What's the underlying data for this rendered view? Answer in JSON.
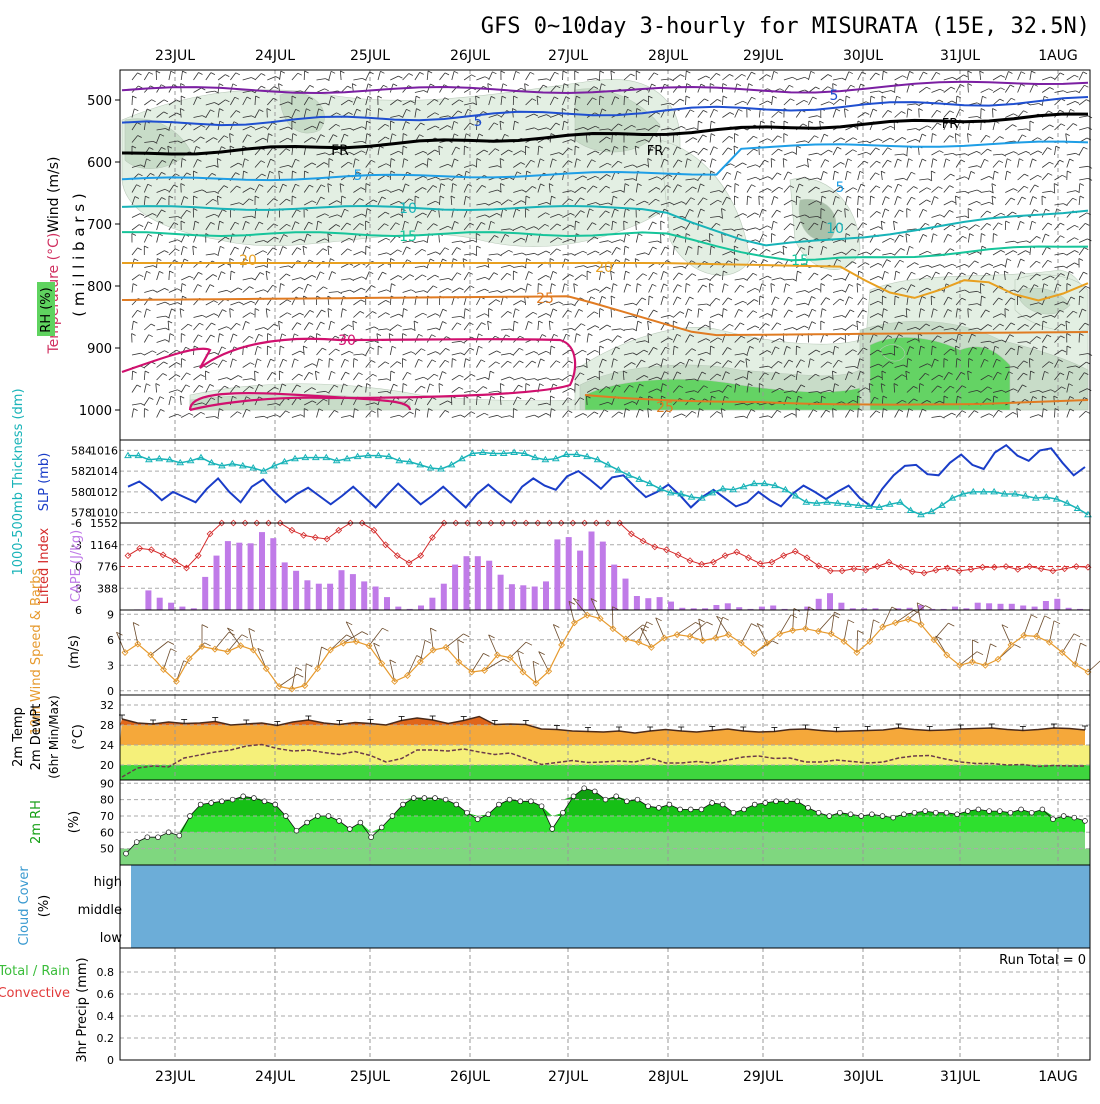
{
  "title": "GFS 0~10day 3-hourly for MISURATA (15E, 32.5N)",
  "dates": [
    "23JUL",
    "24JUL",
    "25JUL",
    "26JUL",
    "27JUL",
    "28JUL",
    "29JUL",
    "30JUL",
    "31JUL",
    "1AUG"
  ],
  "colors": {
    "purple": "#7b1fa2",
    "blue": "#1f4fd0",
    "black": "#000000",
    "lightblue": "#1e9ee6",
    "cyan": "#18b3b8",
    "teal": "#16c49a",
    "gold": "#e8a020",
    "orange": "#e07b22",
    "magenta": "#d0106e",
    "rh_light": "#e2efe2",
    "rh_mid": "#c7dcc7",
    "rh_dark": "#a7bfa7",
    "rh_green": "#5fd35f",
    "slp": "#1a3dc8",
    "thickness": "#18b3b8",
    "cape": "#c07be8",
    "li": "#d42a2a",
    "wind": "#e69a2e",
    "temp_dark": "#e0661a",
    "temp_orange": "#f5a83a",
    "temp_yellow": "#f5f07a",
    "temp_green": "#3ed63e",
    "rh2_dark": "#16c016",
    "rh2_mid": "#2ee02e",
    "rh2_light": "#7fd77f",
    "cloud": "#6cadd8"
  },
  "panels": {
    "upper": {
      "label_wind": "Wind (m/s)",
      "label_temp": "Temperature (°C)",
      "label_rh": "RH (%)",
      "label_mb": "( m i l l i b a r s )",
      "yticks": [
        "500",
        "600",
        "700",
        "800",
        "900",
        "1000"
      ],
      "contours": [
        {
          "label": "5",
          "color": "blue"
        },
        {
          "label": "FR",
          "color": "black"
        },
        {
          "label": "5",
          "color": "lightblue"
        },
        {
          "label": "10",
          "color": "cyan"
        },
        {
          "label": "15",
          "color": "teal"
        },
        {
          "label": "20",
          "color": "gold"
        },
        {
          "label": "25",
          "color": "orange"
        },
        {
          "label": "30",
          "color": "magenta"
        }
      ]
    },
    "slp": {
      "label_thick": "1000-500mb Thickness (dm)",
      "label_slp": "SLP (mb)",
      "left_ticks": [
        "584",
        "582",
        "580",
        "578"
      ],
      "right_ticks": [
        "1016",
        "1014",
        "1012",
        "1010"
      ]
    },
    "cape": {
      "label_li": "Lifted Index",
      "label_cape": "CAPE (J/kg)",
      "left_ticks": [
        "-6",
        "-3",
        "0",
        "3",
        "6"
      ],
      "right_ticks": [
        "1552",
        "1164",
        "776",
        "388"
      ]
    },
    "wind10": {
      "label": "10m Wind Speed & Barbs",
      "unit": "(m/s)",
      "yticks": [
        "9",
        "6",
        "3",
        "0"
      ]
    },
    "temp": {
      "label1": "2m Temp",
      "label2": "2m DewPt",
      "label3": "(6hr Min/Max)",
      "unit": "(°C)",
      "yticks": [
        "32",
        "28",
        "24",
        "20"
      ]
    },
    "rh2": {
      "label": "2m RH",
      "unit": "(%)",
      "yticks": [
        "90",
        "80",
        "70",
        "60",
        "50"
      ]
    },
    "cloud": {
      "label": "Cloud Cover",
      "unit": "(%)",
      "levels": [
        "high",
        "middle",
        "low"
      ]
    },
    "precip": {
      "label": "3hr Precip (mm)",
      "legend_total": "Total / Rain",
      "legend_conv": "Convective",
      "run_total": "Run Total = 0",
      "yticks": [
        "0.8",
        "0.6",
        "0.4",
        "0.2",
        "0"
      ]
    }
  },
  "chart_data": [
    {
      "type": "line",
      "title": "GFS 0~10day 3-hourly for MISURATA (15E, 32.5N)",
      "ylabel": "SLP (mb)",
      "ylim": [
        1009,
        1017
      ],
      "series": [
        {
          "name": "SLP (mb)",
          "values": [
            1012.5,
            1013.0,
            1012.2,
            1011.2,
            1012.0,
            1011.5,
            1011.0,
            1012.3,
            1013.3,
            1012.0,
            1011.0,
            1012.5,
            1013.2,
            1012.0,
            1011.0,
            1011.8,
            1012.4,
            1011.6,
            1010.8,
            1011.6,
            1012.5,
            1011.5,
            1010.5,
            1011.7,
            1012.8,
            1011.8,
            1010.8,
            1011.6,
            1012.5,
            1011.5,
            1010.5,
            1011.8,
            1012.7,
            1011.8,
            1011.0,
            1012.5,
            1013.3,
            1012.6,
            1012.2,
            1013.5,
            1014.0,
            1013.2,
            1012.3,
            1013.4,
            1013.6,
            1012.5,
            1011.5,
            1012.0,
            1012.7,
            1011.7,
            1010.5,
            1011.5,
            1012.2,
            1011.4,
            1010.6,
            1011.0,
            1012.0,
            1011.2,
            1010.6,
            1011.8,
            1012.6,
            1012.0,
            1011.3,
            1012.0,
            1012.6,
            1011.4,
            1010.6,
            1012.3,
            1013.6,
            1014.5,
            1014.6,
            1013.7,
            1013.6,
            1014.8,
            1015.6,
            1014.6,
            1014.2,
            1015.8,
            1016.5,
            1015.5,
            1015.0,
            1016.0,
            1016.2,
            1014.8,
            1013.6,
            1014.4
          ]
        },
        {
          "name": "1000-500mb Thickness (dm)",
          "values": [
            583.5,
            583.5,
            583.1,
            583.2,
            583.1,
            582.8,
            583.0,
            583.3,
            582.8,
            582.5,
            582.7,
            582.5,
            582.3,
            582.0,
            582.5,
            582.9,
            583.2,
            583.3,
            583.3,
            583.3,
            583.0,
            583.2,
            583.4,
            583.5,
            583.5,
            583.4,
            583.0,
            582.9,
            582.6,
            582.3,
            582.2,
            582.6,
            583.2,
            583.7,
            583.8,
            583.7,
            583.7,
            583.8,
            583.7,
            583.3,
            583.1,
            583.2,
            583.6,
            583.6,
            583.4,
            583.1,
            582.6,
            582.1,
            581.6,
            581.2,
            580.8,
            580.3,
            579.9,
            579.8,
            579.5,
            579.4,
            579.9,
            580.3,
            580.2,
            580.5,
            580.8,
            580.8,
            580.6,
            580.2,
            579.6,
            579.0,
            578.9,
            579.0,
            578.9,
            578.8,
            578.7,
            578.6,
            578.5,
            578.8,
            579.0,
            578.2,
            577.8,
            578.1,
            578.7,
            579.4,
            579.8,
            580.0,
            580.0,
            580.0,
            579.8,
            579.8,
            579.6,
            579.4,
            579.5,
            579.3,
            578.9,
            578.4,
            577.8
          ]
        }
      ]
    },
    {
      "type": "bar",
      "title": "",
      "ylabel": "CAPE (J/kg)",
      "ylim": [
        0,
        1552
      ],
      "series": [
        {
          "name": "CAPE (J/kg)",
          "values": [
            10,
            350,
            220,
            130,
            60,
            30,
            590,
            970,
            1230,
            1200,
            1190,
            1390,
            1280,
            850,
            700,
            530,
            470,
            470,
            710,
            640,
            510,
            420,
            230,
            60,
            20,
            80,
            220,
            470,
            810,
            960,
            960,
            880,
            630,
            460,
            440,
            420,
            510,
            1260,
            1300,
            1060,
            1400,
            1220,
            810,
            560,
            250,
            210,
            230,
            150,
            40,
            30,
            30,
            90,
            120,
            50,
            20,
            60,
            80,
            20,
            0,
            60,
            200,
            300,
            130,
            30,
            30,
            30,
            0,
            30,
            40,
            90,
            20,
            20,
            60,
            30,
            130,
            120,
            110,
            110,
            80,
            60,
            160,
            200,
            40,
            20
          ]
        },
        {
          "name": "Lifted Index",
          "values": [
            -1.5,
            -2.5,
            -2.3,
            -1.6,
            -0.8,
            0.2,
            -1.5,
            -4.5,
            -6.0,
            -6.0,
            -6.0,
            -6.0,
            -6.0,
            -6.0,
            -5.0,
            -4.3,
            -4.0,
            -3.8,
            -5.0,
            -6.0,
            -6.0,
            -5.0,
            -3.0,
            -1.5,
            -0.5,
            -1.5,
            -4.0,
            -6.0,
            -6.0,
            -6.0,
            -6.0,
            -6.0,
            -6.0,
            -6.0,
            -6.0,
            -6.0,
            -6.0,
            -6.0,
            -6.0,
            -6.0,
            -6.0,
            -6.0,
            -6.0,
            -4.5,
            -3.5,
            -2.7,
            -2.3,
            -1.6,
            -0.8,
            -0.3,
            -0.6,
            -1.5,
            -2.0,
            -1.2,
            -0.4,
            -0.6,
            -1.5,
            -2.1,
            -1.2,
            -0.1,
            0.6,
            0.6,
            0.3,
            0.5,
            0.0,
            -0.6,
            0.1,
            0.7,
            0.9,
            0.5,
            0.2,
            0.6,
            0.4,
            0.1,
            0.1,
            0.0,
            0.4,
            0.0,
            0.3,
            0.6,
            0.3,
            0.0,
            0.1
          ]
        }
      ]
    },
    {
      "type": "line",
      "title": "",
      "ylabel": "10m Wind Speed (m/s)",
      "ylim": [
        0,
        10
      ],
      "series": [
        {
          "name": "10m Wind Speed",
          "values": [
            4.5,
            5.5,
            4.2,
            2.5,
            1.1,
            3.8,
            5.2,
            4.9,
            4.6,
            5.3,
            4.8,
            2.6,
            0.5,
            0.2,
            0.6,
            2.6,
            4.8,
            5.6,
            5.8,
            5.3,
            3.2,
            1.1,
            1.8,
            3.4,
            4.8,
            5.1,
            3.4,
            2.2,
            2.4,
            4.2,
            3.9,
            2.2,
            0.9,
            2.3,
            5.4,
            8.0,
            8.9,
            8.5,
            7.3,
            6.1,
            5.7,
            5.1,
            6.2,
            6.6,
            6.4,
            5.9,
            6.2,
            6.6,
            5.6,
            4.4,
            5.6,
            6.7,
            7.1,
            7.3,
            7.0,
            6.7,
            5.8,
            4.5,
            5.8,
            7.5,
            8.0,
            8.4,
            7.8,
            6.0,
            4.2,
            3.0,
            3.4,
            3.0,
            3.7,
            5.4,
            6.5,
            6.4,
            5.7,
            4.5,
            3.1,
            2.2
          ]
        }
      ]
    },
    {
      "type": "area",
      "title": "",
      "ylabel": "2m Temp / DewPt (°C)",
      "ylim": [
        17,
        34
      ],
      "series": [
        {
          "name": "2m Temp",
          "values": [
            29.2,
            28.4,
            28.2,
            28.6,
            28.3,
            28.4,
            28.7,
            28.0,
            28.2,
            28.4,
            27.9,
            28.6,
            29.0,
            28.4,
            28.1,
            28.5,
            28.3,
            28.0,
            28.9,
            29.4,
            29.0,
            28.3,
            28.9,
            29.7,
            28.1,
            28.2,
            28.1,
            27.2,
            27.1,
            26.8,
            26.7,
            26.6,
            26.8,
            26.4,
            26.8,
            27.1,
            26.8,
            26.6,
            26.9,
            27.2,
            26.8,
            26.6,
            26.7,
            27.1,
            27.2,
            26.9,
            26.7,
            26.8,
            26.9,
            27.0,
            27.4,
            27.1,
            26.9,
            27.0,
            27.2,
            27.3,
            27.4,
            27.1,
            26.9,
            27.1,
            27.4,
            27.3,
            27.0
          ]
        },
        {
          "name": "2m DewPt",
          "values": [
            17.6,
            19.4,
            19.8,
            19.6,
            21.4,
            22.0,
            22.6,
            23.0,
            23.8,
            24.1,
            23.3,
            22.8,
            23.0,
            22.5,
            22.1,
            22.7,
            21.9,
            20.6,
            21.3,
            23.0,
            23.0,
            22.8,
            23.2,
            22.6,
            22.1,
            22.4,
            21.3,
            20.1,
            20.5,
            20.9,
            20.5,
            20.6,
            20.8,
            20.6,
            21.4,
            20.4,
            20.4,
            20.7,
            20.4,
            21.0,
            21.6,
            21.8,
            21.3,
            21.4,
            20.6,
            20.6,
            21.0,
            20.7,
            20.4,
            20.6,
            21.4,
            21.8,
            21.9,
            21.2,
            20.6,
            20.3,
            20.3,
            20.0,
            20.1,
            19.7,
            19.9,
            19.8,
            19.8
          ]
        }
      ]
    },
    {
      "type": "area",
      "title": "",
      "ylabel": "2m RH (%)",
      "ylim": [
        40,
        92
      ],
      "series": [
        {
          "name": "2m RH",
          "values": [
            47,
            54,
            57,
            57,
            60,
            58,
            70,
            77,
            78,
            79,
            80,
            82,
            81,
            79,
            77,
            70,
            61,
            66,
            70,
            70,
            67,
            62,
            66,
            57,
            63,
            70,
            77,
            81,
            81,
            81,
            80,
            77,
            72,
            68,
            71,
            77,
            80,
            79,
            79,
            76,
            62,
            72,
            82,
            87,
            85,
            80,
            82,
            79,
            80,
            76,
            75,
            77,
            74,
            74,
            74,
            78,
            77,
            72,
            74,
            77,
            78,
            79,
            79,
            79,
            75,
            72,
            70,
            72,
            71,
            70,
            71,
            70,
            69,
            71,
            72,
            73,
            72,
            72,
            71,
            73,
            74,
            73,
            73,
            72,
            74,
            72,
            74,
            68,
            70,
            69,
            67
          ]
        }
      ]
    },
    {
      "type": "bar",
      "title": "",
      "ylabel": "3hr Precip (mm)",
      "ylim": [
        0,
        1
      ],
      "series": [
        {
          "name": "3hr Precip",
          "values": []
        }
      ]
    }
  ]
}
